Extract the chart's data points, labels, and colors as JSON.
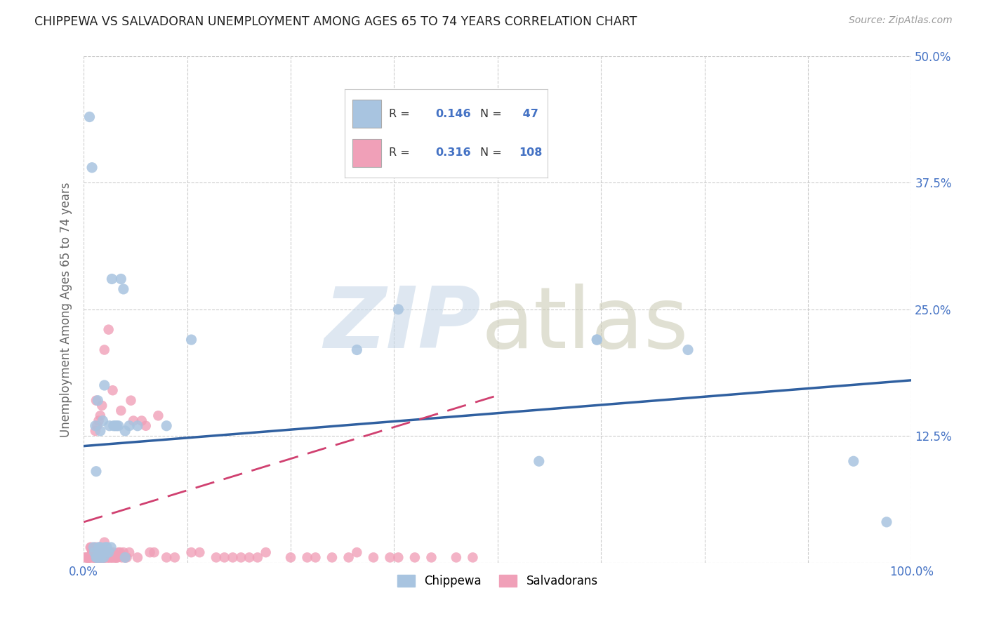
{
  "title": "CHIPPEWA VS SALVADORAN UNEMPLOYMENT AMONG AGES 65 TO 74 YEARS CORRELATION CHART",
  "source": "Source: ZipAtlas.com",
  "ylabel": "Unemployment Among Ages 65 to 74 years",
  "xlim": [
    0,
    1.0
  ],
  "ylim": [
    0,
    0.5
  ],
  "xticks": [
    0.0,
    0.125,
    0.25,
    0.375,
    0.5,
    0.625,
    0.75,
    0.875,
    1.0
  ],
  "xticklabels": [
    "0.0%",
    "",
    "",
    "",
    "",
    "",
    "",
    "",
    "100.0%"
  ],
  "yticks": [
    0.0,
    0.125,
    0.25,
    0.375,
    0.5
  ],
  "yticklabels": [
    "",
    "12.5%",
    "25.0%",
    "37.5%",
    "50.0%"
  ],
  "chippewa_R": 0.146,
  "chippewa_N": 47,
  "salvadoran_R": 0.316,
  "salvadoran_N": 108,
  "chippewa_color": "#a8c4e0",
  "salvadoran_color": "#f0a0b8",
  "chippewa_line_color": "#3060a0",
  "salvadoran_line_color": "#d04070",
  "watermark_zip_color": "#c8d8e8",
  "watermark_atlas_color": "#c8c8b0",
  "chippewa_x": [
    0.007,
    0.01,
    0.012,
    0.013,
    0.014,
    0.015,
    0.015,
    0.016,
    0.017,
    0.018,
    0.018,
    0.019,
    0.02,
    0.02,
    0.021,
    0.022,
    0.023,
    0.024,
    0.025,
    0.025,
    0.026,
    0.027,
    0.028,
    0.03,
    0.031,
    0.033,
    0.034,
    0.036,
    0.038,
    0.04,
    0.042,
    0.045,
    0.048,
    0.055,
    0.065,
    0.1,
    0.13,
    0.33,
    0.38,
    0.55,
    0.62,
    0.62,
    0.73,
    0.93,
    0.97,
    0.05,
    0.05
  ],
  "chippewa_y": [
    0.44,
    0.39,
    0.015,
    0.01,
    0.135,
    0.005,
    0.09,
    0.005,
    0.16,
    0.005,
    0.015,
    0.01,
    0.015,
    0.13,
    0.005,
    0.01,
    0.14,
    0.005,
    0.01,
    0.175,
    0.015,
    0.01,
    0.015,
    0.01,
    0.135,
    0.015,
    0.28,
    0.135,
    0.135,
    0.135,
    0.135,
    0.28,
    0.27,
    0.135,
    0.135,
    0.135,
    0.22,
    0.21,
    0.25,
    0.1,
    0.22,
    0.22,
    0.21,
    0.1,
    0.04,
    0.13,
    0.005
  ],
  "salvadoran_x": [
    0.002,
    0.003,
    0.004,
    0.005,
    0.005,
    0.006,
    0.006,
    0.007,
    0.007,
    0.008,
    0.008,
    0.009,
    0.009,
    0.01,
    0.01,
    0.011,
    0.011,
    0.011,
    0.012,
    0.012,
    0.013,
    0.013,
    0.013,
    0.014,
    0.014,
    0.015,
    0.015,
    0.016,
    0.016,
    0.017,
    0.017,
    0.018,
    0.018,
    0.019,
    0.019,
    0.02,
    0.02,
    0.021,
    0.022,
    0.023,
    0.024,
    0.025,
    0.025,
    0.026,
    0.027,
    0.028,
    0.029,
    0.03,
    0.031,
    0.032,
    0.033,
    0.034,
    0.035,
    0.036,
    0.037,
    0.038,
    0.039,
    0.04,
    0.041,
    0.042,
    0.044,
    0.045,
    0.046,
    0.048,
    0.05,
    0.052,
    0.055,
    0.057,
    0.06,
    0.065,
    0.07,
    0.075,
    0.08,
    0.085,
    0.09,
    0.1,
    0.11,
    0.13,
    0.14,
    0.16,
    0.17,
    0.18,
    0.19,
    0.2,
    0.21,
    0.22,
    0.25,
    0.27,
    0.28,
    0.3,
    0.32,
    0.33,
    0.35,
    0.37,
    0.38,
    0.4,
    0.42,
    0.45,
    0.47,
    0.03,
    0.025,
    0.035,
    0.015,
    0.022,
    0.02,
    0.018,
    0.016,
    0.014
  ],
  "salvadoran_y": [
    0.005,
    0.005,
    0.005,
    0.005,
    0.005,
    0.005,
    0.005,
    0.005,
    0.005,
    0.005,
    0.015,
    0.005,
    0.015,
    0.01,
    0.01,
    0.005,
    0.01,
    0.01,
    0.005,
    0.01,
    0.005,
    0.005,
    0.01,
    0.005,
    0.015,
    0.005,
    0.015,
    0.005,
    0.005,
    0.005,
    0.01,
    0.005,
    0.005,
    0.005,
    0.015,
    0.005,
    0.01,
    0.005,
    0.005,
    0.005,
    0.005,
    0.005,
    0.02,
    0.005,
    0.005,
    0.01,
    0.005,
    0.005,
    0.005,
    0.01,
    0.005,
    0.005,
    0.005,
    0.01,
    0.005,
    0.005,
    0.005,
    0.005,
    0.005,
    0.01,
    0.01,
    0.15,
    0.005,
    0.01,
    0.005,
    0.005,
    0.01,
    0.16,
    0.14,
    0.005,
    0.14,
    0.135,
    0.01,
    0.01,
    0.145,
    0.005,
    0.005,
    0.01,
    0.01,
    0.005,
    0.005,
    0.005,
    0.005,
    0.005,
    0.005,
    0.01,
    0.005,
    0.005,
    0.005,
    0.005,
    0.005,
    0.01,
    0.005,
    0.005,
    0.005,
    0.005,
    0.005,
    0.005,
    0.005,
    0.23,
    0.21,
    0.17,
    0.16,
    0.155,
    0.145,
    0.14,
    0.135,
    0.13
  ],
  "chip_line_x0": 0.0,
  "chip_line_x1": 1.0,
  "chip_line_y0": 0.115,
  "chip_line_y1": 0.18,
  "sal_line_x0": 0.0,
  "sal_line_x1": 0.5,
  "sal_line_y0": 0.04,
  "sal_line_y1": 0.165
}
